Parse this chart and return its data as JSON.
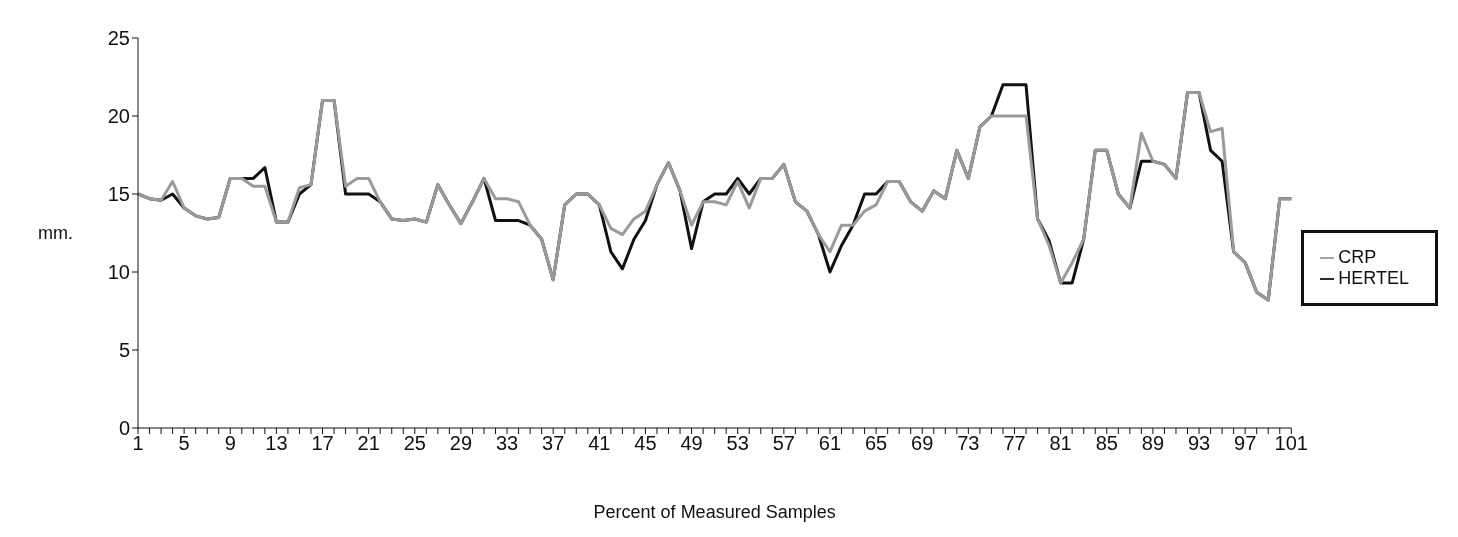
{
  "chart_data": {
    "type": "line",
    "xlabel": "Percent of Measured Samples",
    "ylabel": "mm.",
    "categories": [
      "1",
      null,
      null,
      null,
      "5",
      null,
      null,
      null,
      "9",
      null,
      null,
      null,
      "13",
      null,
      null,
      null,
      "17",
      null,
      null,
      null,
      "21",
      null,
      null,
      null,
      "25",
      null,
      null,
      null,
      "29",
      null,
      null,
      null,
      "33",
      null,
      null,
      null,
      "37",
      null,
      null,
      null,
      "41",
      null,
      null,
      null,
      "45",
      null,
      null,
      null,
      "49",
      null,
      null,
      null,
      "53",
      null,
      null,
      null,
      "57",
      null,
      null,
      null,
      "61",
      null,
      null,
      null,
      "65",
      null,
      null,
      null,
      "69",
      null,
      null,
      null,
      "73",
      null,
      null,
      null,
      "77",
      null,
      null,
      null,
      "81",
      null,
      null,
      null,
      "85",
      null,
      null,
      null,
      "89",
      null,
      null,
      null,
      "93",
      null,
      null,
      null,
      "97",
      null,
      null,
      null,
      "101"
    ],
    "series": [
      {
        "name": "HERTEL",
        "color": "#111111",
        "values": [
          15,
          14.7,
          14.6,
          15,
          14.1,
          13.6,
          13.4,
          13.5,
          16,
          16,
          16,
          16.7,
          13.2,
          13.2,
          15,
          15.6,
          21,
          21,
          15,
          15,
          15,
          14.5,
          13.4,
          13.3,
          13.4,
          13.2,
          15.6,
          14.3,
          13.1,
          14.5,
          16,
          13.3,
          13.3,
          13.3,
          13,
          12.1,
          9.5,
          14.3,
          15,
          15,
          14.3,
          11.3,
          10.2,
          12.1,
          13.3,
          15.6,
          17,
          15.2,
          11.5,
          14.5,
          15,
          15,
          16,
          15,
          16,
          16,
          16.9,
          14.5,
          13.9,
          12.4,
          10,
          11.7,
          13,
          15,
          15,
          15.8,
          15.8,
          14.5,
          13.9,
          15.2,
          14.7,
          17.8,
          16,
          19.3,
          20,
          22,
          22,
          22,
          13.4,
          12,
          9.3,
          9.3,
          12.1,
          17.8,
          17.8,
          15,
          14.1,
          17.1,
          17.1,
          16.9,
          16,
          21.5,
          21.5,
          17.8,
          17.1,
          11.3,
          10.6,
          8.7,
          8.2,
          14.7,
          14.7
        ]
      },
      {
        "name": "CRP",
        "color": "#9a9a9a",
        "values": [
          15,
          14.7,
          14.6,
          15.8,
          14.1,
          13.6,
          13.4,
          13.5,
          16,
          16,
          15.5,
          15.5,
          13.2,
          13.2,
          15.4,
          15.6,
          21,
          21,
          15.5,
          16,
          16,
          14.5,
          13.4,
          13.3,
          13.4,
          13.2,
          15.6,
          14.3,
          13.1,
          14.5,
          16,
          14.7,
          14.7,
          14.5,
          13,
          12.1,
          9.5,
          14.3,
          15,
          15,
          14.3,
          12.8,
          12.4,
          13.4,
          13.9,
          15.6,
          17,
          15.2,
          13,
          14.5,
          14.5,
          14.3,
          15.8,
          14.1,
          16,
          16,
          16.9,
          14.5,
          13.9,
          12.4,
          11.3,
          13,
          13,
          13.9,
          14.3,
          15.8,
          15.8,
          14.5,
          13.9,
          15.2,
          14.7,
          17.8,
          16,
          19.3,
          20,
          20,
          20,
          20,
          13.4,
          11.7,
          9.3,
          10.6,
          12.1,
          17.8,
          17.8,
          15,
          14.1,
          18.9,
          17.1,
          16.9,
          16,
          21.5,
          21.5,
          19,
          19.2,
          11.3,
          10.6,
          8.7,
          8.2,
          14.7,
          14.7
        ]
      }
    ],
    "ylim": [
      0,
      25
    ],
    "yticks": [
      0,
      5,
      10,
      15,
      20,
      25
    ],
    "grid": false,
    "legend": "right",
    "marker": "none",
    "line_style": "solid"
  }
}
